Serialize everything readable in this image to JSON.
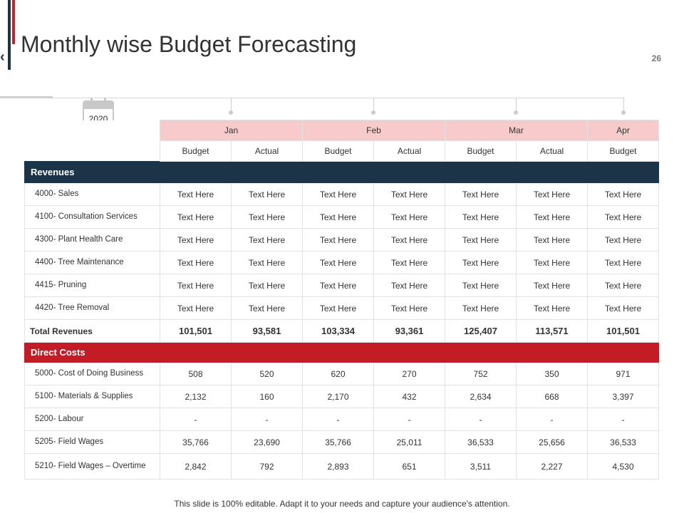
{
  "header": {
    "title": "Monthly wise Budget Forecasting",
    "page_number": "26",
    "back_glyph": "‹",
    "year": "2020"
  },
  "table": {
    "months": [
      "Jan",
      "Feb",
      "Mar",
      "Apr"
    ],
    "subheaders": [
      "Budget",
      "Actual",
      "Budget",
      "Actual",
      "Budget",
      "Actual",
      "Budget"
    ],
    "revenues_label": "Revenues",
    "revenue_rows": [
      {
        "label": "4000- Sales",
        "values": [
          "Text Here",
          "Text Here",
          "Text Here",
          "Text Here",
          "Text Here",
          "Text Here",
          "Text Here"
        ]
      },
      {
        "label": "4100- Consultation Services",
        "values": [
          "Text Here",
          "Text Here",
          "Text Here",
          "Text Here",
          "Text Here",
          "Text Here",
          "Text Here"
        ]
      },
      {
        "label": "4300- Plant Health Care",
        "values": [
          "Text Here",
          "Text Here",
          "Text Here",
          "Text Here",
          "Text Here",
          "Text Here",
          "Text Here"
        ]
      },
      {
        "label": "4400- Tree Maintenance",
        "values": [
          "Text Here",
          "Text Here",
          "Text Here",
          "Text Here",
          "Text Here",
          "Text Here",
          "Text Here"
        ]
      },
      {
        "label": "4415- Pruning",
        "values": [
          "Text Here",
          "Text Here",
          "Text Here",
          "Text Here",
          "Text Here",
          "Text Here",
          "Text Here"
        ]
      },
      {
        "label": "4420- Tree Removal",
        "values": [
          "Text Here",
          "Text Here",
          "Text Here",
          "Text Here",
          "Text Here",
          "Text Here",
          "Text Here"
        ]
      }
    ],
    "total_revenues": {
      "label": "Total Revenues",
      "values": [
        "101,501",
        "93,581",
        "103,334",
        "93,361",
        "125,407",
        "113,571",
        "101,501"
      ]
    },
    "direct_costs_label": "Direct Costs",
    "cost_rows": [
      {
        "label": "5000- Cost of Doing Business",
        "values": [
          "508",
          "520",
          "620",
          "270",
          "752",
          "350",
          "971"
        ]
      },
      {
        "label": "5100- Materials & Supplies",
        "values": [
          "2,132",
          "160",
          "2,170",
          "432",
          "2,634",
          "668",
          "3,397"
        ]
      },
      {
        "label": "5200- Labour",
        "values": [
          "-",
          "-",
          "-",
          "-",
          "-",
          "-",
          "-"
        ]
      },
      {
        "label": "5205- Field Wages",
        "values": [
          "35,766",
          "23,690",
          "35,766",
          "25,011",
          "36,533",
          "25,656",
          "36,533"
        ]
      },
      {
        "label": "5210- Field Wages – Overtime",
        "values": [
          "2,842",
          "792",
          "2,893",
          "651",
          "3,511",
          "2,227",
          "4,530"
        ]
      }
    ]
  },
  "footer": {
    "note": "This slide is 100% editable. Adapt it to your needs and capture your audience's attention."
  },
  "colors": {
    "navy": "#1b3447",
    "red": "#c21d26",
    "month_header_pink": "#f7cbcc"
  }
}
